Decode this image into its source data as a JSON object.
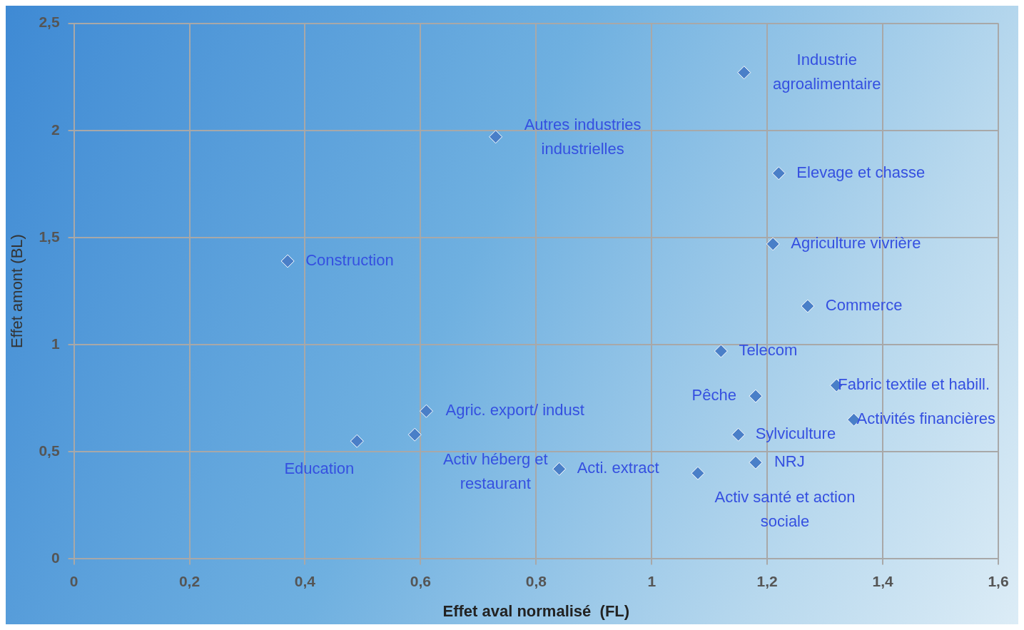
{
  "chart_data": {
    "type": "scatter",
    "xlabel": "Effet aval normalisé  (FL)",
    "ylabel": "Effet amont (BL)",
    "x": [
      1.16,
      0.73,
      1.22,
      1.21,
      0.37,
      1.27,
      1.12,
      1.32,
      1.18,
      0.61,
      1.35,
      1.15,
      0.59,
      0.49,
      1.18,
      0.84,
      1.08
    ],
    "values": [
      2.27,
      1.97,
      1.8,
      1.47,
      1.39,
      1.18,
      0.97,
      0.81,
      0.76,
      0.69,
      0.65,
      0.58,
      0.58,
      0.55,
      0.45,
      0.42,
      0.4
    ],
    "color": "#4a7fc8",
    "marker": "diamond",
    "grid": true,
    "xlim": [
      0,
      1.6
    ],
    "xticks": [
      0,
      {
        "value": 0.2,
        "label": "0,2"
      },
      {
        "value": 0.4,
        "label": "0,4"
      },
      {
        "value": 0.6,
        "label": "0,6"
      },
      {
        "value": 0.8,
        "label": "0,8"
      },
      1,
      {
        "value": 1.2,
        "label": "1,2"
      },
      {
        "value": 1.4,
        "label": "1,4"
      },
      {
        "value": 1.6,
        "label": "1,6"
      }
    ],
    "ylim": [
      0,
      2.5
    ],
    "yticks": [
      0,
      {
        "value": 0.5,
        "label": "0,5"
      },
      1,
      {
        "value": 1.5,
        "label": "1,5"
      },
      2,
      {
        "value": 2.5,
        "label": "2,5"
      }
    ],
    "annotations": [
      {
        "text": "Industrie agroalimentaire",
        "x": 1.16,
        "y": 2.27
      },
      {
        "text": "Autres industries industrielles",
        "x": 0.73,
        "y": 1.97
      },
      {
        "text": "Elevage et chasse",
        "x": 1.22,
        "y": 1.8
      },
      {
        "text": "Agriculture vivrière",
        "x": 1.21,
        "y": 1.47
      },
      {
        "text": "Construction",
        "x": 0.37,
        "y": 1.39
      },
      {
        "text": "Commerce",
        "x": 1.27,
        "y": 1.18
      },
      {
        "text": "Telecom",
        "x": 1.12,
        "y": 0.97
      },
      {
        "text": "Fabric textile et habill.",
        "x": 1.32,
        "y": 0.81
      },
      {
        "text": "Pêche",
        "x": 1.18,
        "y": 0.76
      },
      {
        "text": "Agric. export/ indust",
        "x": 0.61,
        "y": 0.69
      },
      {
        "text": "Activités financières",
        "x": 1.35,
        "y": 0.65
      },
      {
        "text": "Sylviculture",
        "x": 1.15,
        "y": 0.58
      },
      {
        "text": "Activ héberg et restaurant",
        "x": 0.59,
        "y": 0.58
      },
      {
        "text": "Education",
        "x": 0.49,
        "y": 0.55
      },
      {
        "text": "NRJ",
        "x": 1.18,
        "y": 0.45
      },
      {
        "text": "Acti. extract",
        "x": 0.84,
        "y": 0.42
      },
      {
        "text": "Activ santé et action sociale",
        "x": 1.08,
        "y": 0.4
      }
    ]
  }
}
